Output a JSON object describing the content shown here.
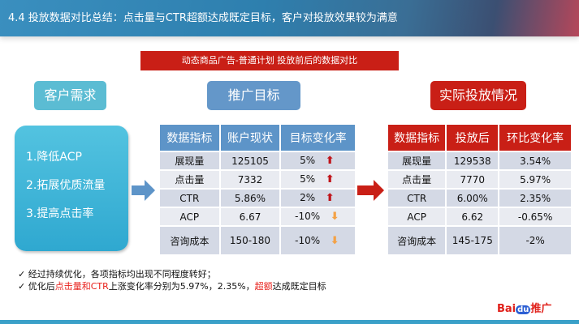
{
  "header": {
    "title": "4.4 投放数据对比总结：点击量与CTR超额达成既定目标，客户对投放效果较为满意"
  },
  "banner": "动态商品广告-普通计划 投放前后的数据对比",
  "labels": {
    "need": "客户需求",
    "goal": "推广目标",
    "actual": "实际投放情况"
  },
  "needs": [
    "1.降低ACP",
    "2.拓展优质流量",
    "3.提高点击率"
  ],
  "colors": {
    "red": "#c91f16",
    "blue": "#5d94c8",
    "teal": "#3aa0c8",
    "up": "#c0141a",
    "down": "#f4a246"
  },
  "goal_table": {
    "headers": [
      "数据指标",
      "账户现状",
      "目标变化率"
    ],
    "rows": [
      {
        "metric": "展现量",
        "current": "125105",
        "target": "5%",
        "dir": "up"
      },
      {
        "metric": "点击量",
        "current": "7332",
        "target": "5%",
        "dir": "up"
      },
      {
        "metric": "CTR",
        "current": "5.86%",
        "target": "2%",
        "dir": "up"
      },
      {
        "metric": "ACP",
        "current": "6.67",
        "target": "-10%",
        "dir": "down"
      },
      {
        "metric": "咨询成本",
        "current": "150-180",
        "target": "-10%",
        "dir": "down"
      }
    ]
  },
  "actual_table": {
    "headers": [
      "数据指标",
      "投放后",
      "环比变化率"
    ],
    "rows": [
      {
        "metric": "展现量",
        "after": "129538",
        "change": "3.54%"
      },
      {
        "metric": "点击量",
        "after": "7770",
        "change": "5.97%"
      },
      {
        "metric": "CTR",
        "after": "6.00%",
        "change": "2.35%"
      },
      {
        "metric": "ACP",
        "after": "6.62",
        "change": "-0.65%"
      },
      {
        "metric": "咨询成本",
        "after": "145-175",
        "change": "-2%"
      }
    ]
  },
  "notes": {
    "line1": "✓ 经过持续优化，各项指标均出现不同程度转好；",
    "line2_a": "✓ 优化后",
    "line2_b": "点击量和CTR",
    "line2_c": "上涨变化率分别为5.97%，2.35%，",
    "line2_d": "超额",
    "line2_e": "达成既定目标"
  },
  "logo": {
    "bai": "Bai",
    "du": "du",
    "text": "推广"
  }
}
